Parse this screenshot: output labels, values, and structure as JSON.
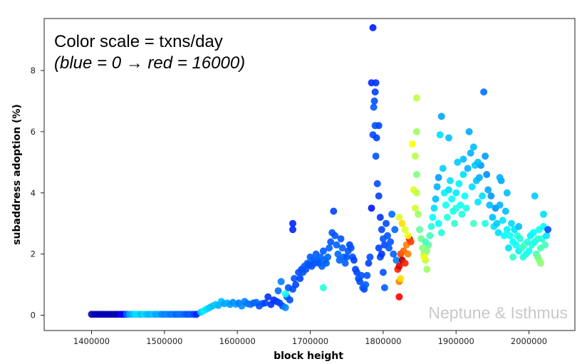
{
  "chart_data": {
    "type": "scatter",
    "title": "",
    "xlabel": "block height",
    "ylabel": "subaddress adoption (%)",
    "xlim": [
      1335000,
      2063000
    ],
    "ylim": [
      -0.5,
      9.7
    ],
    "xticks": [
      1400000,
      1500000,
      1600000,
      1700000,
      1800000,
      1900000,
      2000000
    ],
    "xtick_labels": [
      "1400000",
      "1500000",
      "1600000",
      "1700000",
      "1800000",
      "1900000",
      "2000000"
    ],
    "yticks": [
      0,
      2,
      4,
      6,
      8
    ],
    "ytick_labels": [
      "0",
      "2",
      "4",
      "6",
      "8"
    ],
    "grid": false,
    "colormap": "jet",
    "color_scale": {
      "variable": "txns/day",
      "min": 0,
      "max": 16000
    },
    "annotations": [
      {
        "text": "Color scale = txns/day",
        "style": "normal"
      },
      {
        "text": "(blue = 0 → red = 16000)",
        "style": "italic"
      }
    ],
    "watermark": "Neptune & Isthmus",
    "points": [
      [
        1400000,
        0.03,
        800
      ],
      [
        1404000,
        0.03,
        800
      ],
      [
        1408000,
        0.03,
        800
      ],
      [
        1412000,
        0.03,
        800
      ],
      [
        1416000,
        0.03,
        800
      ],
      [
        1420000,
        0.03,
        800
      ],
      [
        1424000,
        0.03,
        800
      ],
      [
        1428000,
        0.03,
        800
      ],
      [
        1432000,
        0.03,
        800
      ],
      [
        1436000,
        0.03,
        800
      ],
      [
        1440000,
        0.03,
        1800
      ],
      [
        1444000,
        0.03,
        2000
      ],
      [
        1448000,
        0.03,
        3500
      ],
      [
        1452000,
        0.03,
        4500
      ],
      [
        1456000,
        0.03,
        5000
      ],
      [
        1460000,
        0.03,
        5500
      ],
      [
        1464000,
        0.03,
        5500
      ],
      [
        1468000,
        0.03,
        5000
      ],
      [
        1472000,
        0.03,
        5500
      ],
      [
        1476000,
        0.03,
        5000
      ],
      [
        1480000,
        0.03,
        4800
      ],
      [
        1484000,
        0.03,
        5200
      ],
      [
        1488000,
        0.03,
        4500
      ],
      [
        1492000,
        0.03,
        4800
      ],
      [
        1496000,
        0.03,
        4200
      ],
      [
        1500000,
        0.03,
        4000
      ],
      [
        1504000,
        0.03,
        4200
      ],
      [
        1508000,
        0.03,
        3800
      ],
      [
        1512000,
        0.03,
        4000
      ],
      [
        1516000,
        0.03,
        3500
      ],
      [
        1520000,
        0.03,
        3800
      ],
      [
        1524000,
        0.03,
        3800
      ],
      [
        1528000,
        0.03,
        3500
      ],
      [
        1532000,
        0.03,
        3200
      ],
      [
        1536000,
        0.03,
        3500
      ],
      [
        1540000,
        0.03,
        3000
      ],
      [
        1544000,
        0.03,
        2500
      ],
      [
        1550000,
        0.1,
        5200
      ],
      [
        1554000,
        0.15,
        5800
      ],
      [
        1558000,
        0.2,
        5500
      ],
      [
        1562000,
        0.25,
        5200
      ],
      [
        1566000,
        0.3,
        5000
      ],
      [
        1570000,
        0.35,
        5200
      ],
      [
        1574000,
        0.32,
        4800
      ],
      [
        1578000,
        0.45,
        5000
      ],
      [
        1582000,
        0.38,
        4500
      ],
      [
        1586000,
        0.4,
        4800
      ],
      [
        1590000,
        0.35,
        4500
      ],
      [
        1594000,
        0.42,
        4200
      ],
      [
        1598000,
        0.36,
        4500
      ],
      [
        1602000,
        0.4,
        4000
      ],
      [
        1606000,
        0.3,
        4200
      ],
      [
        1610000,
        0.45,
        4000
      ],
      [
        1614000,
        0.38,
        3800
      ],
      [
        1618000,
        0.35,
        3900
      ],
      [
        1622000,
        0.4,
        3500
      ],
      [
        1626000,
        0.42,
        3600
      ],
      [
        1630000,
        0.3,
        3200
      ],
      [
        1634000,
        0.38,
        3400
      ],
      [
        1638000,
        0.4,
        3000
      ],
      [
        1642000,
        0.6,
        2800
      ],
      [
        1646000,
        0.35,
        2800
      ],
      [
        1650000,
        0.5,
        2600
      ],
      [
        1654000,
        0.45,
        2900
      ],
      [
        1658000,
        0.4,
        3000
      ],
      [
        1662000,
        0.3,
        3200
      ],
      [
        1666000,
        0.25,
        4200
      ],
      [
        1660000,
        1.1,
        4000
      ],
      [
        1668000,
        0.6,
        3500
      ],
      [
        1670000,
        0.9,
        3300
      ],
      [
        1672000,
        0.5,
        3200
      ],
      [
        1676000,
        0.85,
        3200
      ],
      [
        1678000,
        1.2,
        3300
      ],
      [
        1680000,
        1.0,
        3000
      ],
      [
        1684000,
        1.4,
        3200
      ],
      [
        1686000,
        1.2,
        3000
      ],
      [
        1688000,
        1.5,
        3200
      ],
      [
        1690000,
        1.4,
        3300
      ],
      [
        1692000,
        1.6,
        3400
      ],
      [
        1694000,
        1.5,
        3300
      ],
      [
        1696000,
        1.7,
        3500
      ],
      [
        1698000,
        1.65,
        3300
      ],
      [
        1700000,
        1.9,
        3400
      ],
      [
        1702000,
        1.6,
        3300
      ],
      [
        1704000,
        1.8,
        3500
      ],
      [
        1706000,
        1.7,
        3300
      ],
      [
        1708000,
        2.0,
        3400
      ],
      [
        1710000,
        1.8,
        3500
      ],
      [
        1712000,
        1.7,
        3300
      ],
      [
        1714000,
        1.9,
        3600
      ],
      [
        1716000,
        1.6,
        3500
      ],
      [
        1718000,
        2.1,
        3400
      ],
      [
        1720000,
        1.8,
        3700
      ],
      [
        1722000,
        1.7,
        3500
      ],
      [
        1724000,
        1.9,
        3600
      ],
      [
        1726000,
        2.2,
        3500
      ],
      [
        1728000,
        2.4,
        3400
      ],
      [
        1730000,
        2.7,
        3300
      ],
      [
        1732000,
        3.4,
        3000
      ],
      [
        1734000,
        2.6,
        3300
      ],
      [
        1736000,
        2.3,
        3500
      ],
      [
        1738000,
        2.0,
        3600
      ],
      [
        1740000,
        1.8,
        3500
      ],
      [
        1742000,
        2.5,
        3300
      ],
      [
        1744000,
        2.2,
        3500
      ],
      [
        1746000,
        1.9,
        3600
      ],
      [
        1748000,
        1.7,
        3500
      ],
      [
        1750000,
        1.9,
        3400
      ],
      [
        1752000,
        2.1,
        3300
      ],
      [
        1754000,
        2.3,
        3100
      ],
      [
        1756000,
        2.2,
        3300
      ],
      [
        1758000,
        1.9,
        3200
      ],
      [
        1760000,
        1.8,
        3000
      ],
      [
        1762000,
        1.5,
        3100
      ],
      [
        1764000,
        1.4,
        3100
      ],
      [
        1766000,
        1.2,
        3300
      ],
      [
        1768000,
        1.1,
        3200
      ],
      [
        1770000,
        1.3,
        3300
      ],
      [
        1772000,
        0.9,
        3500
      ],
      [
        1774000,
        0.85,
        3200
      ],
      [
        1776000,
        1.0,
        3500
      ],
      [
        1778000,
        1.3,
        3300
      ],
      [
        1780000,
        1.7,
        3000
      ],
      [
        1782000,
        1.9,
        3200
      ],
      [
        1784000,
        3.5,
        2300
      ],
      [
        1676000,
        2.8,
        2600
      ],
      [
        1676000,
        3.0,
        2600
      ],
      [
        1718000,
        0.9,
        6500
      ],
      [
        1666000,
        0.7,
        6200
      ],
      [
        1656000,
        0.8,
        3700
      ],
      [
        1786000,
        9.4,
        2400
      ],
      [
        1784000,
        7.6,
        2700
      ],
      [
        1790000,
        7.6,
        2800
      ],
      [
        1789000,
        7.3,
        3000
      ],
      [
        1788000,
        7.0,
        3200
      ],
      [
        1787000,
        6.8,
        3400
      ],
      [
        1789000,
        6.2,
        3300
      ],
      [
        1786000,
        5.9,
        3200
      ],
      [
        1794000,
        6.2,
        3100
      ],
      [
        1791000,
        5.8,
        3000
      ],
      [
        1790000,
        5.2,
        3300
      ],
      [
        1792000,
        4.3,
        3200
      ],
      [
        1794000,
        3.9,
        3000
      ],
      [
        1796000,
        3.2,
        2800
      ],
      [
        1794000,
        2.2,
        3000
      ],
      [
        1798000,
        2.8,
        3100
      ],
      [
        1796000,
        1.9,
        3200
      ],
      [
        1800000,
        2.5,
        3300
      ],
      [
        1802000,
        2.3,
        3100
      ],
      [
        1804000,
        3.0,
        3200
      ],
      [
        1806000,
        2.6,
        3300
      ],
      [
        1808000,
        2.2,
        3400
      ],
      [
        1810000,
        2.4,
        3300
      ],
      [
        1812000,
        3.3,
        3700
      ],
      [
        1814000,
        2.0,
        3500
      ],
      [
        1816000,
        2.8,
        3600
      ],
      [
        1818000,
        1.8,
        3900
      ],
      [
        1798000,
        2.0,
        2800
      ],
      [
        1800000,
        1.4,
        3300
      ],
      [
        1802000,
        0.9,
        3500
      ],
      [
        1820000,
        1.5,
        13500
      ],
      [
        1822000,
        1.6,
        14500
      ],
      [
        1824000,
        2.0,
        13000
      ],
      [
        1826000,
        1.8,
        15500
      ],
      [
        1828000,
        2.1,
        12500
      ],
      [
        1830000,
        1.7,
        13500
      ],
      [
        1832000,
        2.3,
        12000
      ],
      [
        1834000,
        2.0,
        12000
      ],
      [
        1836000,
        2.5,
        14000
      ],
      [
        1838000,
        2.4,
        13000
      ],
      [
        1822000,
        1.1,
        12000
      ],
      [
        1824000,
        1.2,
        10500
      ],
      [
        1822000,
        0.6,
        14000
      ],
      [
        1822000,
        3.2,
        9500
      ],
      [
        1826000,
        3.0,
        10500
      ],
      [
        1830000,
        2.8,
        9500
      ],
      [
        1834000,
        2.6,
        9800
      ],
      [
        1840000,
        5.6,
        10000
      ],
      [
        1842000,
        4.1,
        9500
      ],
      [
        1844000,
        3.5,
        9300
      ],
      [
        1846000,
        7.1,
        9000
      ],
      [
        1846000,
        6.0,
        8500
      ],
      [
        1844000,
        5.2,
        8800
      ],
      [
        1846000,
        4.0,
        9000
      ],
      [
        1848000,
        3.3,
        8500
      ],
      [
        1846000,
        4.6,
        8000
      ],
      [
        1850000,
        2.8,
        7500
      ],
      [
        1852000,
        2.5,
        7800
      ],
      [
        1854000,
        2.2,
        8200
      ],
      [
        1856000,
        2.0,
        8500
      ],
      [
        1858000,
        1.8,
        9000
      ],
      [
        1860000,
        2.1,
        8200
      ],
      [
        1862000,
        2.3,
        7500
      ],
      [
        1864000,
        2.6,
        7000
      ],
      [
        1866000,
        2.9,
        6500
      ],
      [
        1868000,
        3.2,
        6000
      ],
      [
        1870000,
        3.5,
        5500
      ],
      [
        1872000,
        3.8,
        5000
      ],
      [
        1874000,
        4.2,
        4800
      ],
      [
        1876000,
        4.5,
        4500
      ],
      [
        1878000,
        5.9,
        5500
      ],
      [
        1880000,
        6.5,
        4600
      ],
      [
        1882000,
        4.8,
        5300
      ],
      [
        1884000,
        4.0,
        5800
      ],
      [
        1886000,
        3.6,
        6200
      ],
      [
        1888000,
        3.2,
        6500
      ],
      [
        1890000,
        5.8,
        5000
      ],
      [
        1892000,
        4.4,
        5500
      ],
      [
        1894000,
        3.8,
        6000
      ],
      [
        1896000,
        3.4,
        6300
      ],
      [
        1898000,
        3.0,
        6800
      ],
      [
        1900000,
        4.0,
        5700
      ],
      [
        1902000,
        5.0,
        5200
      ],
      [
        1904000,
        4.3,
        5800
      ],
      [
        1906000,
        3.6,
        6200
      ],
      [
        1908000,
        3.3,
        6500
      ],
      [
        1910000,
        4.6,
        5500
      ],
      [
        1912000,
        3.9,
        6000
      ],
      [
        1914000,
        3.5,
        6400
      ],
      [
        1916000,
        4.8,
        4800
      ],
      [
        1918000,
        6.0,
        4700
      ],
      [
        1920000,
        5.3,
        4800
      ],
      [
        1922000,
        4.2,
        5500
      ],
      [
        1924000,
        5.5,
        5000
      ],
      [
        1926000,
        4.9,
        5200
      ],
      [
        1928000,
        4.4,
        5000
      ],
      [
        1930000,
        3.7,
        5600
      ],
      [
        1932000,
        4.5,
        4800
      ],
      [
        1934000,
        4.9,
        4400
      ],
      [
        1936000,
        3.9,
        5500
      ],
      [
        1938000,
        7.3,
        3800
      ],
      [
        1940000,
        5.2,
        4500
      ],
      [
        1942000,
        4.6,
        4200
      ],
      [
        1944000,
        4.1,
        4600
      ],
      [
        1946000,
        3.6,
        5000
      ],
      [
        1948000,
        3.9,
        4400
      ],
      [
        1950000,
        3.2,
        5000
      ],
      [
        1952000,
        2.9,
        5500
      ],
      [
        1954000,
        3.5,
        4300
      ],
      [
        1956000,
        3.0,
        5200
      ],
      [
        1958000,
        2.7,
        5500
      ],
      [
        1960000,
        3.6,
        4800
      ],
      [
        1962000,
        4.4,
        4600
      ],
      [
        1964000,
        3.1,
        5600
      ],
      [
        1966000,
        2.6,
        6000
      ],
      [
        1968000,
        3.4,
        5000
      ],
      [
        1970000,
        2.8,
        5800
      ],
      [
        1972000,
        2.2,
        5500
      ],
      [
        1974000,
        2.6,
        6200
      ],
      [
        1976000,
        3.0,
        5400
      ],
      [
        1978000,
        2.4,
        6000
      ],
      [
        1980000,
        2.8,
        5600
      ],
      [
        1982000,
        2.3,
        6200
      ],
      [
        1984000,
        2.6,
        6500
      ],
      [
        1986000,
        2.1,
        5800
      ],
      [
        1988000,
        2.5,
        6500
      ],
      [
        1990000,
        2.2,
        6800
      ],
      [
        1992000,
        1.9,
        6500
      ],
      [
        1994000,
        2.3,
        7000
      ],
      [
        1996000,
        2.0,
        6400
      ],
      [
        1998000,
        2.4,
        6600
      ],
      [
        2000000,
        2.1,
        6200
      ],
      [
        2002000,
        2.6,
        5800
      ],
      [
        2004000,
        2.3,
        6500
      ],
      [
        2006000,
        2.7,
        6000
      ],
      [
        2008000,
        2.4,
        6300
      ],
      [
        2010000,
        2.0,
        7000
      ],
      [
        2012000,
        2.5,
        6700
      ],
      [
        2014000,
        2.8,
        6200
      ],
      [
        2016000,
        2.2,
        7200
      ],
      [
        2018000,
        2.5,
        6500
      ],
      [
        2020000,
        2.9,
        6000
      ],
      [
        2022000,
        2.3,
        7000
      ],
      [
        2024000,
        2.6,
        5600
      ],
      [
        2026000,
        2.8,
        3200
      ],
      [
        2014000,
        1.8,
        8500
      ],
      [
        2016000,
        1.7,
        8200
      ],
      [
        2012000,
        1.9,
        7800
      ],
      [
        2020000,
        3.3,
        5500
      ],
      [
        2008000,
        3.9,
        5200
      ],
      [
        1860000,
        1.5,
        8500
      ],
      [
        1858000,
        2.4,
        7000
      ],
      [
        1856000,
        1.9,
        9800
      ],
      [
        1880000,
        2.7,
        6500
      ],
      [
        1876000,
        3.0,
        6000
      ],
      [
        1910000,
        5.1,
        5000
      ],
      [
        1930000,
        5.0,
        5000
      ],
      [
        1924000,
        3.0,
        7000
      ],
      [
        1900000,
        3.5,
        6500
      ],
      [
        1890000,
        4.1,
        5500
      ],
      [
        1960000,
        4.5,
        4800
      ],
      [
        1970000,
        4.0,
        5000
      ],
      [
        1940000,
        3.0,
        6500
      ],
      [
        1978000,
        1.9,
        6800
      ],
      [
        1986000,
        2.9,
        5000
      ]
    ]
  }
}
